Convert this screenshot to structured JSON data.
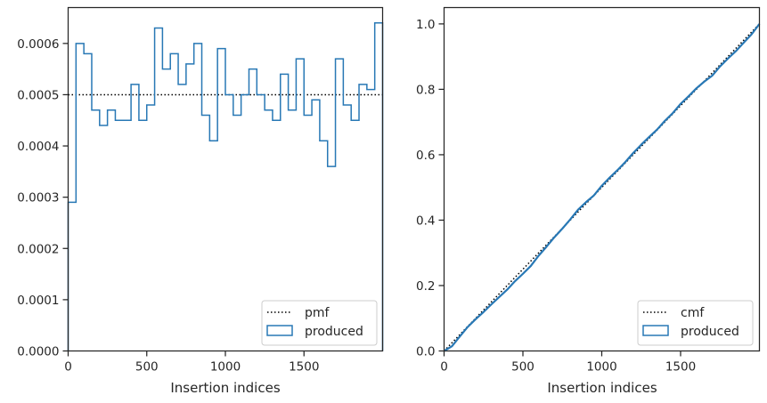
{
  "chart_data": [
    {
      "type": "histogram-step",
      "xlabel": "Insertion indices",
      "ylabel": "",
      "xlim": [
        0,
        2000
      ],
      "ylim": [
        0,
        0.00067
      ],
      "xticks": [
        0,
        500,
        1000,
        1500
      ],
      "xtick_labels": [
        "0",
        "500",
        "1000",
        "1500"
      ],
      "yticks": [
        0,
        0.0001,
        0.0002,
        0.0003,
        0.0004,
        0.0005,
        0.0006
      ],
      "ytick_labels": [
        "0.0000",
        "0.0001",
        "0.0002",
        "0.0003",
        "0.0004",
        "0.0005",
        "0.0006"
      ],
      "bin_width": 50,
      "bin_edges_start": 0,
      "values": [
        0.00029,
        0.0006,
        0.00058,
        0.00047,
        0.00044,
        0.00047,
        0.00045,
        0.00045,
        0.00052,
        0.00045,
        0.00048,
        0.00063,
        0.00055,
        0.00058,
        0.00052,
        0.00056,
        0.0006,
        0.00046,
        0.00041,
        0.00059,
        0.0005,
        0.00046,
        0.0005,
        0.00055,
        0.0005,
        0.00047,
        0.00045,
        0.00054,
        0.00047,
        0.00057,
        0.00046,
        0.00049,
        0.00041,
        0.00036,
        0.00057,
        0.00048,
        0.00045,
        0.00052,
        0.00051,
        0.00064
      ],
      "reference": {
        "name": "pmf",
        "y": 0.0005,
        "style": "dotted",
        "color": "#000000"
      },
      "series": [
        {
          "name": "produced",
          "color": "#2878b5"
        }
      ],
      "legend": [
        "pmf",
        "produced"
      ],
      "legend_position": "lower-right",
      "grid": false
    },
    {
      "type": "line",
      "xlabel": "Insertion indices",
      "ylabel": "",
      "xlim": [
        0,
        2000
      ],
      "ylim": [
        0,
        1.05
      ],
      "xticks": [
        0,
        500,
        1000,
        1500
      ],
      "xtick_labels": [
        "0",
        "500",
        "1000",
        "1500"
      ],
      "yticks": [
        0,
        0.2,
        0.4,
        0.6,
        0.8,
        1.0
      ],
      "ytick_labels": [
        "0.0",
        "0.2",
        "0.4",
        "0.6",
        "0.8",
        "1.0"
      ],
      "reference": {
        "name": "cmf",
        "x": [
          0,
          2000
        ],
        "y": [
          0,
          1.0
        ],
        "style": "dotted",
        "color": "#000000"
      },
      "series": [
        {
          "name": "produced",
          "color": "#2878b5",
          "x": [
            0,
            50,
            100,
            150,
            200,
            250,
            300,
            350,
            400,
            450,
            500,
            550,
            600,
            650,
            700,
            750,
            800,
            850,
            900,
            950,
            1000,
            1050,
            1100,
            1150,
            1200,
            1250,
            1300,
            1350,
            1400,
            1450,
            1500,
            1550,
            1600,
            1650,
            1700,
            1750,
            1800,
            1850,
            1900,
            1950,
            2000
          ],
          "y": [
            0,
            0.0145,
            0.0445,
            0.0735,
            0.097,
            0.119,
            0.1425,
            0.165,
            0.1875,
            0.2135,
            0.236,
            0.26,
            0.2915,
            0.319,
            0.348,
            0.374,
            0.402,
            0.432,
            0.455,
            0.4755,
            0.505,
            0.53,
            0.553,
            0.578,
            0.6055,
            0.6305,
            0.654,
            0.6765,
            0.7035,
            0.727,
            0.7555,
            0.7785,
            0.803,
            0.8235,
            0.8415,
            0.87,
            0.894,
            0.9165,
            0.9425,
            0.968,
            1.0
          ]
        }
      ],
      "legend": [
        "cmf",
        "produced"
      ],
      "legend_position": "lower-right",
      "grid": false
    }
  ]
}
